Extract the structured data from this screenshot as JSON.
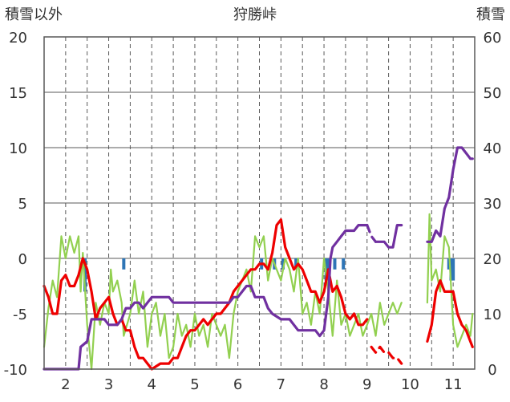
{
  "chart_data": {
    "type": "line",
    "title": "狩勝峠",
    "ylabel_left": "積雪以外",
    "ylabel_right": "積雪",
    "ylim_left": [
      -10,
      20
    ],
    "ylim_right": [
      0,
      60
    ],
    "yticks_left": [
      "-10",
      "-5",
      "0",
      "5",
      "10",
      "15",
      "20"
    ],
    "yticks_right": [
      "0",
      "10",
      "20",
      "30",
      "40",
      "50",
      "60"
    ],
    "xlim": [
      1.5,
      11.5
    ],
    "xticks": [
      {
        "x": 2,
        "label": "2"
      },
      {
        "x": 3,
        "label": "3"
      },
      {
        "x": 4,
        "label": "4"
      },
      {
        "x": 5,
        "label": "5"
      },
      {
        "x": 6,
        "label": "6"
      },
      {
        "x": 7,
        "label": "7"
      },
      {
        "x": 8,
        "label": "8"
      },
      {
        "x": 9,
        "label": "9"
      },
      {
        "x": 10,
        "label": "10"
      },
      {
        "x": 11,
        "label": "11"
      }
    ],
    "grid_x": [
      1.5,
      2,
      2.5,
      3,
      3.5,
      4,
      4.5,
      5,
      5.5,
      6,
      6.5,
      7,
      7.5,
      8,
      8.5,
      9,
      9.5,
      10,
      10.5,
      11,
      11.5
    ],
    "grid_y": [
      -5,
      0,
      5,
      10,
      15
    ],
    "colors": {
      "red": "#ee0000",
      "green": "#92d050",
      "purple": "#7030a0",
      "blue": "#2e75b6"
    },
    "series_green": {
      "axis": "left",
      "segments": [
        [
          [
            1.5,
            -8
          ],
          [
            1.6,
            -4.5
          ],
          [
            1.7,
            -2
          ],
          [
            1.8,
            -3.5
          ],
          [
            1.9,
            2
          ],
          [
            2.0,
            0
          ],
          [
            2.1,
            2
          ],
          [
            2.2,
            0.5
          ],
          [
            2.3,
            2
          ],
          [
            2.35,
            -3
          ],
          [
            2.4,
            0.5
          ],
          [
            2.5,
            -6
          ],
          [
            2.6,
            -10
          ],
          [
            2.65,
            -7
          ],
          [
            2.7,
            -4
          ],
          [
            2.8,
            -6
          ],
          [
            2.9,
            -4
          ],
          [
            3.0,
            -5
          ],
          [
            3.05,
            -1
          ],
          [
            3.1,
            -3
          ],
          [
            3.2,
            -2
          ],
          [
            3.3,
            -4
          ],
          [
            3.35,
            -7
          ],
          [
            3.5,
            -5
          ],
          [
            3.6,
            -2
          ],
          [
            3.7,
            -5
          ],
          [
            3.8,
            -3
          ],
          [
            3.9,
            -8
          ],
          [
            4.0,
            -5
          ],
          [
            4.1,
            -4
          ],
          [
            4.2,
            -7
          ],
          [
            4.3,
            -5
          ],
          [
            4.4,
            -9
          ],
          [
            4.5,
            -8
          ],
          [
            4.6,
            -5
          ],
          [
            4.7,
            -7
          ],
          [
            4.8,
            -6
          ],
          [
            4.9,
            -8
          ],
          [
            5.0,
            -5
          ],
          [
            5.1,
            -7
          ],
          [
            5.2,
            -6
          ],
          [
            5.3,
            -8
          ],
          [
            5.4,
            -5
          ],
          [
            5.5,
            -6
          ],
          [
            5.6,
            -7
          ],
          [
            5.7,
            -6
          ],
          [
            5.8,
            -9
          ],
          [
            5.9,
            -5
          ],
          [
            6.0,
            -3
          ],
          [
            6.1,
            -2
          ],
          [
            6.2,
            -1
          ],
          [
            6.3,
            -3
          ],
          [
            6.4,
            2
          ],
          [
            6.5,
            1
          ],
          [
            6.6,
            2
          ],
          [
            6.7,
            -2
          ],
          [
            6.8,
            0
          ],
          [
            6.9,
            -1
          ],
          [
            7.0,
            -2
          ],
          [
            7.1,
            0
          ],
          [
            7.2,
            -1
          ],
          [
            7.3,
            -3
          ],
          [
            7.4,
            0
          ],
          [
            7.5,
            -5
          ],
          [
            7.6,
            -4
          ],
          [
            7.7,
            -6
          ],
          [
            7.8,
            -3
          ],
          [
            7.9,
            -5
          ],
          [
            8.0,
            0
          ],
          [
            8.1,
            -3
          ],
          [
            8.2,
            -7
          ],
          [
            8.3,
            -2
          ],
          [
            8.4,
            -6
          ],
          [
            8.5,
            -5
          ],
          [
            8.6,
            -7
          ],
          [
            8.7,
            -6
          ],
          [
            8.8,
            -5
          ],
          [
            8.9,
            -7
          ],
          [
            9.0,
            -6
          ],
          [
            9.1,
            -5
          ],
          [
            9.2,
            -7
          ],
          [
            9.3,
            -4
          ],
          [
            9.4,
            -6
          ],
          [
            9.5,
            -5
          ],
          [
            9.6,
            -4
          ],
          [
            9.7,
            -5
          ],
          [
            9.8,
            -4
          ]
        ],
        [
          [
            10.4,
            -4
          ],
          [
            10.45,
            4
          ],
          [
            10.5,
            -2
          ],
          [
            10.6,
            -1
          ],
          [
            10.7,
            -3
          ],
          [
            10.8,
            2
          ],
          [
            10.9,
            1
          ],
          [
            11.0,
            -6
          ],
          [
            11.1,
            -8
          ],
          [
            11.2,
            -7
          ],
          [
            11.3,
            -6
          ],
          [
            11.4,
            -7
          ],
          [
            11.45,
            -5
          ]
        ]
      ]
    },
    "series_red": {
      "axis": "left",
      "segments": [
        [
          [
            1.5,
            -2.5
          ],
          [
            1.6,
            -3.5
          ],
          [
            1.7,
            -5
          ],
          [
            1.8,
            -5
          ],
          [
            1.9,
            -2
          ],
          [
            2.0,
            -1.5
          ],
          [
            2.1,
            -2.5
          ],
          [
            2.2,
            -2.5
          ],
          [
            2.3,
            -1.5
          ],
          [
            2.4,
            0
          ],
          [
            2.5,
            -1
          ],
          [
            2.6,
            -3
          ],
          [
            2.7,
            -5.5
          ],
          [
            2.8,
            -4.5
          ],
          [
            2.9,
            -4
          ],
          [
            3.0,
            -3.5
          ],
          [
            3.1,
            -5
          ],
          [
            3.2,
            -6
          ],
          [
            3.3,
            -5.5
          ],
          [
            3.4,
            -6.5
          ],
          [
            3.5,
            -6.5
          ],
          [
            3.6,
            -8
          ],
          [
            3.7,
            -9
          ],
          [
            3.8,
            -9
          ],
          [
            3.9,
            -9.5
          ],
          [
            4.0,
            -10
          ],
          [
            4.2,
            -9.5
          ],
          [
            4.4,
            -9.5
          ],
          [
            4.5,
            -9
          ],
          [
            4.6,
            -9
          ],
          [
            4.7,
            -8
          ],
          [
            4.8,
            -7
          ],
          [
            4.9,
            -6.5
          ],
          [
            5.0,
            -6.5
          ],
          [
            5.1,
            -6
          ],
          [
            5.2,
            -5.5
          ],
          [
            5.3,
            -6
          ],
          [
            5.4,
            -5.5
          ],
          [
            5.5,
            -5
          ],
          [
            5.6,
            -5
          ],
          [
            5.7,
            -4.5
          ],
          [
            5.8,
            -4
          ],
          [
            5.9,
            -3
          ],
          [
            6.0,
            -2.5
          ],
          [
            6.1,
            -2
          ],
          [
            6.2,
            -1.5
          ],
          [
            6.3,
            -1
          ],
          [
            6.4,
            -1
          ],
          [
            6.5,
            -0.5
          ],
          [
            6.6,
            -0.5
          ],
          [
            6.7,
            -1
          ],
          [
            6.8,
            0.5
          ],
          [
            6.9,
            3
          ],
          [
            7.0,
            3.5
          ],
          [
            7.1,
            1
          ],
          [
            7.2,
            0
          ],
          [
            7.3,
            -1
          ],
          [
            7.4,
            -0.5
          ],
          [
            7.5,
            -1
          ],
          [
            7.6,
            -2
          ],
          [
            7.7,
            -3
          ],
          [
            7.8,
            -3
          ],
          [
            7.9,
            -4
          ],
          [
            8.0,
            -3
          ],
          [
            8.1,
            -1
          ],
          [
            8.2,
            -3
          ],
          [
            8.3,
            -2.5
          ],
          [
            8.4,
            -3.5
          ],
          [
            8.5,
            -5
          ],
          [
            8.6,
            -5.5
          ],
          [
            8.7,
            -5
          ],
          [
            8.8,
            -6
          ],
          [
            8.9,
            -6
          ],
          [
            9.0,
            -5.5
          ]
        ],
        [
          [
            9.1,
            -8
          ],
          [
            9.2,
            -8.5
          ],
          [
            9.3,
            -8
          ],
          [
            9.4,
            -8.5
          ],
          [
            9.5,
            -8.5
          ],
          [
            9.6,
            -9
          ],
          [
            9.7,
            -9
          ],
          [
            9.8,
            -9.5
          ]
        ],
        [
          [
            10.4,
            -7.5
          ],
          [
            10.5,
            -6
          ],
          [
            10.6,
            -3
          ],
          [
            10.7,
            -2
          ],
          [
            10.8,
            -3
          ],
          [
            10.9,
            -3
          ],
          [
            11.0,
            -3
          ],
          [
            11.1,
            -5
          ],
          [
            11.2,
            -6
          ],
          [
            11.3,
            -6.5
          ],
          [
            11.4,
            -7.5
          ],
          [
            11.45,
            -8
          ]
        ]
      ],
      "dashed_segment_indices": [
        1
      ]
    },
    "series_purple": {
      "axis": "right",
      "segments": [
        [
          [
            1.5,
            0
          ],
          [
            2.3,
            0
          ],
          [
            2.35,
            4
          ],
          [
            2.5,
            5
          ],
          [
            2.6,
            9
          ],
          [
            2.7,
            9
          ],
          [
            2.8,
            9
          ],
          [
            2.9,
            9
          ],
          [
            3.0,
            8
          ],
          [
            3.1,
            8
          ],
          [
            3.2,
            8
          ],
          [
            3.3,
            9
          ],
          [
            3.4,
            11
          ],
          [
            3.5,
            11
          ],
          [
            3.6,
            12
          ],
          [
            3.7,
            12
          ],
          [
            3.8,
            11
          ],
          [
            3.9,
            12
          ],
          [
            4.0,
            13
          ],
          [
            4.1,
            13
          ],
          [
            4.2,
            13
          ],
          [
            4.4,
            13
          ],
          [
            4.5,
            12
          ],
          [
            4.6,
            12
          ],
          [
            4.8,
            12
          ],
          [
            5.0,
            12
          ],
          [
            5.2,
            12
          ],
          [
            5.4,
            12
          ],
          [
            5.6,
            12
          ],
          [
            5.8,
            12
          ],
          [
            5.9,
            13
          ],
          [
            6.0,
            13
          ],
          [
            6.1,
            14
          ],
          [
            6.2,
            15
          ],
          [
            6.3,
            15
          ],
          [
            6.4,
            13
          ],
          [
            6.5,
            13
          ],
          [
            6.6,
            13
          ],
          [
            6.7,
            11
          ],
          [
            6.8,
            10
          ],
          [
            7.0,
            9
          ],
          [
            7.2,
            9
          ],
          [
            7.4,
            7
          ],
          [
            7.6,
            7
          ],
          [
            7.8,
            7
          ],
          [
            7.9,
            6
          ],
          [
            8.0,
            7
          ],
          [
            8.1,
            13
          ],
          [
            8.15,
            20
          ],
          [
            8.2,
            22
          ],
          [
            8.3,
            23
          ],
          [
            8.4,
            24
          ],
          [
            8.5,
            25
          ],
          [
            8.6,
            25
          ],
          [
            8.7,
            25
          ],
          [
            8.8,
            26
          ],
          [
            8.9,
            26
          ],
          [
            9.0,
            26
          ]
        ],
        [
          [
            9.0,
            26
          ],
          [
            9.1,
            24
          ],
          [
            9.2,
            23
          ]
        ],
        [
          [
            9.2,
            23
          ],
          [
            9.3,
            23
          ],
          [
            9.4,
            23
          ],
          [
            9.5,
            22
          ],
          [
            9.6,
            22
          ],
          [
            9.7,
            26
          ],
          [
            9.8,
            26
          ]
        ],
        [
          [
            10.4,
            23
          ],
          [
            10.5,
            23
          ],
          [
            10.6,
            25
          ],
          [
            10.7,
            24
          ],
          [
            10.8,
            29
          ],
          [
            10.85,
            30
          ],
          [
            10.9,
            31
          ],
          [
            11.0,
            36
          ],
          [
            11.1,
            40
          ],
          [
            11.2,
            40
          ],
          [
            11.3,
            39
          ],
          [
            11.4,
            38
          ],
          [
            11.45,
            38
          ]
        ]
      ],
      "dashed_segment_indices": [
        1
      ]
    },
    "series_blue_bars": {
      "axis": "left",
      "bars": [
        [
          2.45,
          -3
        ],
        [
          3.35,
          -1
        ],
        [
          6.55,
          -1
        ],
        [
          6.85,
          -1
        ],
        [
          7.05,
          -1
        ],
        [
          7.35,
          -1
        ],
        [
          8.05,
          -2
        ],
        [
          8.1,
          -2
        ],
        [
          8.25,
          -1
        ],
        [
          8.45,
          -1
        ],
        [
          10.9,
          -1
        ],
        [
          10.95,
          -2
        ],
        [
          11.0,
          -2
        ]
      ]
    }
  }
}
